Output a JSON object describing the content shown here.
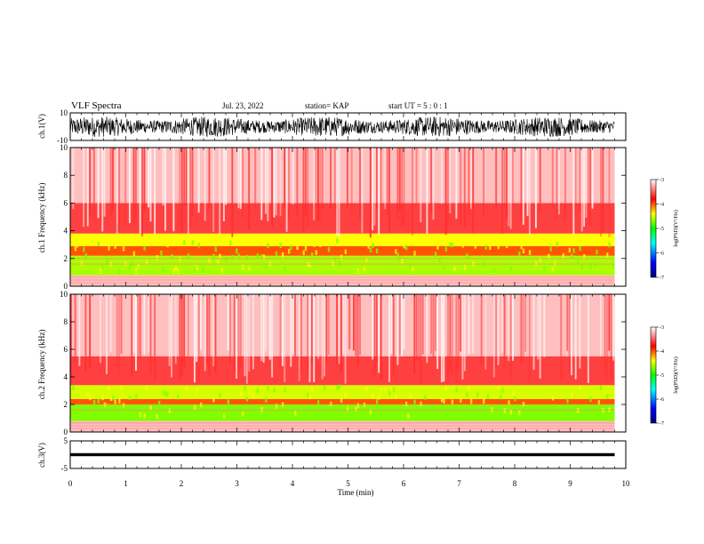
{
  "header": {
    "title": "VLF Spectra",
    "date": "Jul. 23, 2022",
    "station": "station= KAP",
    "start": "start UT =  5 : 0 : 1"
  },
  "colorbar_label": "log(PSD)(V²/Hz)",
  "colors": {
    "low": "#0000ff",
    "mid": "#00ff00",
    "high": "#ff0000",
    "sat": "#ffffff"
  },
  "chart_data": [
    {
      "type": "line",
      "panel": "ch1-waveform",
      "ylabel": "ch.1(V)",
      "ylim": [
        -10,
        10
      ],
      "yticks": [
        "10",
        "-10"
      ],
      "x_range": [
        0,
        9.8
      ],
      "signal": "dense noise spanning approx -7 to 7 V"
    },
    {
      "type": "heatmap",
      "panel": "ch1-spectrogram",
      "ylabel": "ch.1 Frequency (kHz)",
      "ylim": [
        0,
        10
      ],
      "yticks": [
        "0",
        "2",
        "4",
        "6",
        "8",
        "10"
      ],
      "x_range": [
        0,
        9.8
      ],
      "colorbar": {
        "range": [
          -7,
          -3
        ],
        "ticks": [
          "-3",
          "-4",
          "-5",
          "-6",
          "-7"
        ]
      },
      "bands_khz": [
        {
          "from": 0,
          "to": 0.8,
          "level": -3.2
        },
        {
          "from": 0.8,
          "to": 2.2,
          "level": -4.6
        },
        {
          "from": 2.2,
          "to": 2.9,
          "level": -4.0
        },
        {
          "from": 2.9,
          "to": 3.8,
          "level": -4.4
        },
        {
          "from": 3.8,
          "to": 6.0,
          "level": -3.6
        },
        {
          "from": 6.0,
          "to": 10.0,
          "level": -3.2
        }
      ]
    },
    {
      "type": "heatmap",
      "panel": "ch2-spectrogram",
      "ylabel": "ch.2 Frequency (kHz)",
      "ylim": [
        0,
        10
      ],
      "yticks": [
        "0",
        "2",
        "4",
        "6",
        "8",
        "10"
      ],
      "x_range": [
        0,
        9.8
      ],
      "colorbar": {
        "range": [
          -7,
          -3
        ],
        "ticks": [
          "-3",
          "-4",
          "-5",
          "-6",
          "-7"
        ]
      },
      "bands_khz": [
        {
          "from": 0,
          "to": 0.8,
          "level": -3.2
        },
        {
          "from": 0.8,
          "to": 2.0,
          "level": -4.7
        },
        {
          "from": 2.0,
          "to": 2.4,
          "level": -4.0
        },
        {
          "from": 2.4,
          "to": 3.4,
          "level": -4.5
        },
        {
          "from": 3.4,
          "to": 5.5,
          "level": -3.6
        },
        {
          "from": 5.5,
          "to": 10.0,
          "level": -3.2
        }
      ]
    },
    {
      "type": "line",
      "panel": "ch3-waveform",
      "ylabel": "ch.3(V)",
      "ylim": [
        -5,
        5
      ],
      "yticks": [
        "5",
        "-5"
      ],
      "x_range": [
        0,
        9.8
      ],
      "signal": "narrow band centred near 0 V, approx -0.5 to 0.5 V",
      "xlabel": "Time (min)",
      "xlim": [
        0,
        10
      ],
      "xticks": [
        "0",
        "1",
        "2",
        "3",
        "4",
        "5",
        "6",
        "7",
        "8",
        "9",
        "10"
      ]
    }
  ]
}
